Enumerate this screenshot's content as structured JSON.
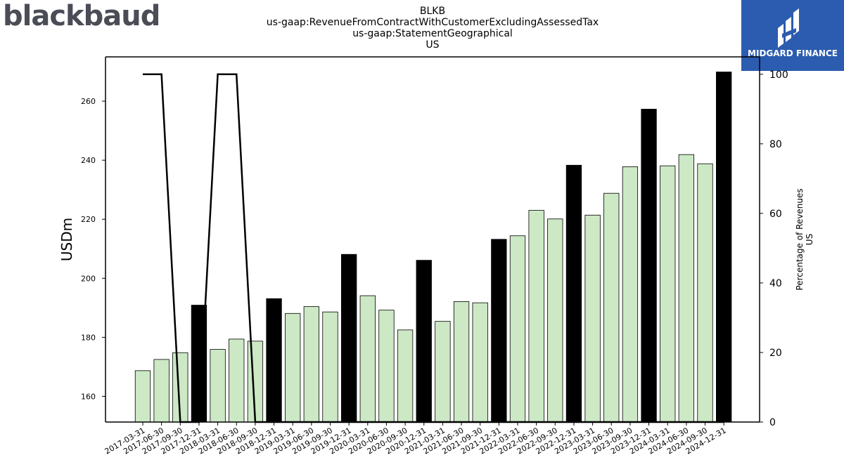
{
  "header": {
    "brand_logo_text": "blackbaud",
    "title_lines": [
      "BLKB",
      "us-gaap:RevenueFromContractWithCustomerExcludingAssessedTax",
      "us-gaap:StatementGeographical",
      "US"
    ],
    "corner_logo_text": "MIDGARD FINANCE"
  },
  "colors": {
    "bar_default": "#cce8c5",
    "bar_highlight": "#000000",
    "line": "#000000",
    "logo_bg": "#2b5caf"
  },
  "chart_data": {
    "type": "bar",
    "categories": [
      "2017-03-31",
      "2017-06-30",
      "2017-09-30",
      "2017-12-31",
      "2018-03-31",
      "2018-06-30",
      "2018-09-30",
      "2018-12-31",
      "2019-03-31",
      "2019-06-30",
      "2019-09-30",
      "2019-12-31",
      "2020-03-31",
      "2020-06-30",
      "2020-09-30",
      "2020-12-31",
      "2021-03-31",
      "2021-06-30",
      "2021-09-30",
      "2021-12-31",
      "2022-03-31",
      "2022-06-30",
      "2022-09-30",
      "2022-12-31",
      "2023-03-31",
      "2023-06-30",
      "2023-09-30",
      "2023-12-31",
      "2024-03-31",
      "2024-06-30",
      "2024-09-30",
      "2024-12-31"
    ],
    "series": [
      {
        "values": [
          168.7,
          172.5,
          174.8,
          190.9,
          175.9,
          179.4,
          178.7,
          193.1,
          188.1,
          190.4,
          188.6,
          208.1,
          194.1,
          189.2,
          182.5,
          206.1,
          185.4,
          192.1,
          191.7,
          213.2,
          214.4,
          223.0,
          220.1,
          238.3,
          221.4,
          228.8,
          237.8,
          257.3,
          238.1,
          241.9,
          238.8,
          269.9
        ],
        "highlight": [
          false,
          false,
          false,
          true,
          false,
          false,
          false,
          true,
          false,
          false,
          false,
          true,
          false,
          false,
          false,
          true,
          false,
          false,
          false,
          true,
          false,
          false,
          false,
          true,
          false,
          false,
          false,
          true,
          false,
          false,
          false,
          true
        ]
      },
      {
        "axis": "right",
        "type": "line",
        "values": [
          100,
          100,
          0,
          0,
          100,
          100,
          0,
          0,
          0,
          0,
          0,
          0,
          0,
          0,
          0,
          0,
          0,
          0,
          0,
          0,
          0,
          0,
          0,
          0,
          0,
          0,
          0,
          0,
          0,
          0,
          0,
          0
        ]
      }
    ],
    "ylabel": "USDm",
    "ylabel_right": "Percentage of Revenues\nUS",
    "ylim": [
      151.3,
      275.0
    ],
    "ylim_right": [
      0,
      105
    ],
    "yticks": [
      160,
      180,
      200,
      220,
      240,
      260
    ],
    "yticks_right": [
      0,
      20,
      40,
      60,
      80,
      100
    ]
  }
}
